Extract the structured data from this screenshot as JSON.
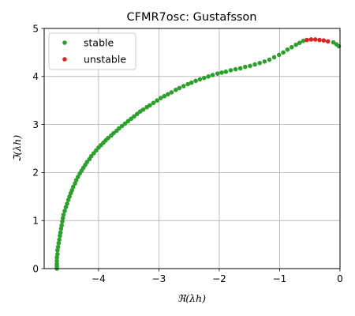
{
  "chart_data": {
    "type": "scatter",
    "title": "CFMR7osc: Gustafsson",
    "xlabel": "ℜ(λh)",
    "ylabel": "ℑ(λh)",
    "xlim": [
      -4.9,
      0
    ],
    "ylim": [
      0,
      5
    ],
    "xticks": [
      -4,
      -3,
      -2,
      -1,
      0
    ],
    "xtick_labels": [
      "−4",
      "−3",
      "−2",
      "−1",
      "0"
    ],
    "yticks": [
      0,
      1,
      2,
      3,
      4,
      5
    ],
    "ytick_labels": [
      "0",
      "1",
      "2",
      "3",
      "4",
      "5"
    ],
    "grid": true,
    "legend_position": "top-left",
    "series": [
      {
        "name": "stable",
        "color": "#2ca02c",
        "points": [
          [
            -4.69,
            0.0
          ],
          [
            -4.69,
            0.05
          ],
          [
            -4.69,
            0.1
          ],
          [
            -4.69,
            0.16
          ],
          [
            -4.69,
            0.23
          ],
          [
            -4.68,
            0.3
          ],
          [
            -4.68,
            0.38
          ],
          [
            -4.67,
            0.45
          ],
          [
            -4.66,
            0.53
          ],
          [
            -4.65,
            0.6
          ],
          [
            -4.64,
            0.68
          ],
          [
            -4.63,
            0.75
          ],
          [
            -4.62,
            0.83
          ],
          [
            -4.61,
            0.9
          ],
          [
            -4.6,
            0.98
          ],
          [
            -4.59,
            1.05
          ],
          [
            -4.58,
            1.12
          ],
          [
            -4.56,
            1.2
          ],
          [
            -4.54,
            1.28
          ],
          [
            -4.52,
            1.35
          ],
          [
            -4.5,
            1.43
          ],
          [
            -4.48,
            1.5
          ],
          [
            -4.46,
            1.57
          ],
          [
            -4.44,
            1.63
          ],
          [
            -4.42,
            1.7
          ],
          [
            -4.39,
            1.77
          ],
          [
            -4.37,
            1.84
          ],
          [
            -4.34,
            1.91
          ],
          [
            -4.31,
            1.98
          ],
          [
            -4.28,
            2.04
          ],
          [
            -4.25,
            2.1
          ],
          [
            -4.22,
            2.16
          ],
          [
            -4.19,
            2.22
          ],
          [
            -4.15,
            2.28
          ],
          [
            -4.12,
            2.34
          ],
          [
            -4.08,
            2.4
          ],
          [
            -4.04,
            2.46
          ],
          [
            -4.0,
            2.52
          ],
          [
            -3.96,
            2.57
          ],
          [
            -3.92,
            2.62
          ],
          [
            -3.88,
            2.67
          ],
          [
            -3.84,
            2.72
          ],
          [
            -3.79,
            2.77
          ],
          [
            -3.75,
            2.82
          ],
          [
            -3.7,
            2.87
          ],
          [
            -3.66,
            2.92
          ],
          [
            -3.61,
            2.97
          ],
          [
            -3.56,
            3.02
          ],
          [
            -3.51,
            3.07
          ],
          [
            -3.46,
            3.12
          ],
          [
            -3.41,
            3.17
          ],
          [
            -3.36,
            3.22
          ],
          [
            -3.31,
            3.27
          ],
          [
            -3.26,
            3.31
          ],
          [
            -3.2,
            3.36
          ],
          [
            -3.15,
            3.4
          ],
          [
            -3.09,
            3.45
          ],
          [
            -3.03,
            3.5
          ],
          [
            -2.97,
            3.55
          ],
          [
            -2.91,
            3.59
          ],
          [
            -2.85,
            3.63
          ],
          [
            -2.79,
            3.67
          ],
          [
            -2.72,
            3.72
          ],
          [
            -2.66,
            3.76
          ],
          [
            -2.59,
            3.8
          ],
          [
            -2.52,
            3.84
          ],
          [
            -2.46,
            3.87
          ],
          [
            -2.39,
            3.91
          ],
          [
            -2.32,
            3.94
          ],
          [
            -2.25,
            3.97
          ],
          [
            -2.18,
            4.0
          ],
          [
            -2.11,
            4.03
          ],
          [
            -2.03,
            4.06
          ],
          [
            -1.96,
            4.08
          ],
          [
            -1.89,
            4.1
          ],
          [
            -1.81,
            4.13
          ],
          [
            -1.73,
            4.15
          ],
          [
            -1.65,
            4.17
          ],
          [
            -1.57,
            4.2
          ],
          [
            -1.49,
            4.22
          ],
          [
            -1.41,
            4.25
          ],
          [
            -1.33,
            4.28
          ],
          [
            -1.25,
            4.31
          ],
          [
            -1.17,
            4.35
          ],
          [
            -1.09,
            4.4
          ],
          [
            -1.01,
            4.45
          ],
          [
            -0.94,
            4.5
          ],
          [
            -0.87,
            4.56
          ],
          [
            -0.8,
            4.61
          ],
          [
            -0.73,
            4.66
          ],
          [
            -0.67,
            4.7
          ],
          [
            -0.61,
            4.74
          ],
          [
            -0.11,
            4.71
          ],
          [
            -0.06,
            4.67
          ],
          [
            -0.02,
            4.63
          ]
        ]
      },
      {
        "name": "unstable",
        "color": "#d62728",
        "points": [
          [
            -0.55,
            4.76
          ],
          [
            -0.48,
            4.77
          ],
          [
            -0.41,
            4.77
          ],
          [
            -0.34,
            4.76
          ],
          [
            -0.27,
            4.75
          ],
          [
            -0.2,
            4.73
          ]
        ]
      }
    ]
  }
}
